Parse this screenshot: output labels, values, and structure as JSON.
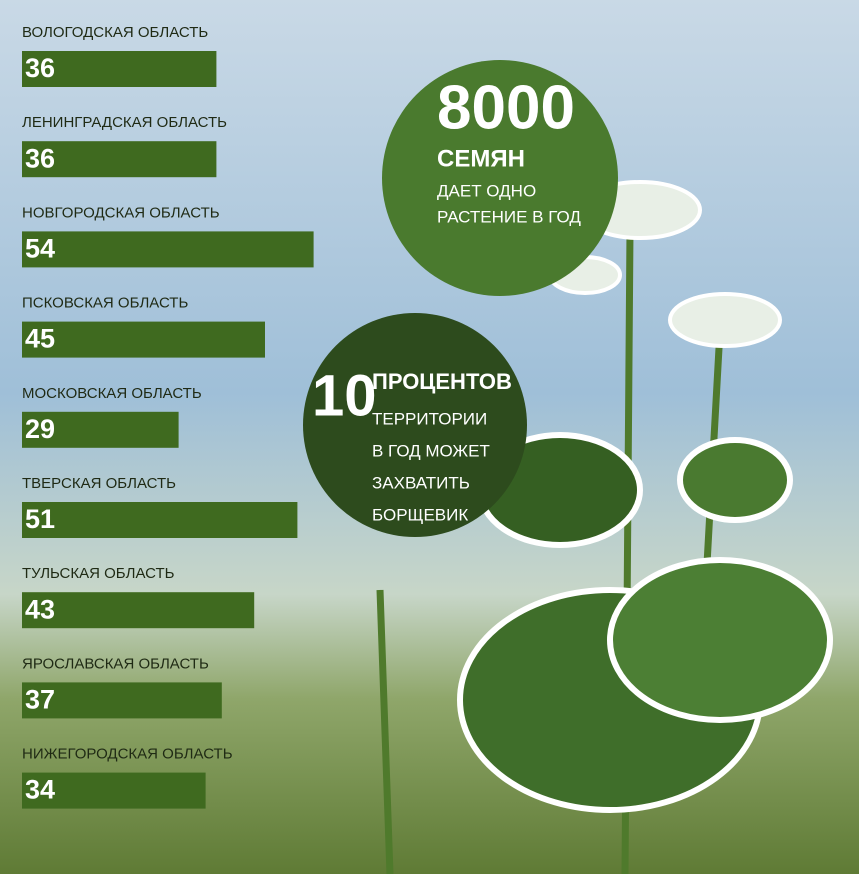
{
  "chart_data": {
    "type": "hbar",
    "categories": [
      "ВОЛОГОДСКАЯ ОБЛАСТЬ",
      "ЛЕНИНГРАДСКАЯ ОБЛАСТЬ",
      "НОВГОРОДСКАЯ ОБЛАСТЬ",
      "ПСКОВСКАЯ ОБЛАСТЬ",
      "МОСКОВСКАЯ ОБЛАСТЬ",
      "ТВЕРСКАЯ ОБЛАСТЬ",
      "ТУЛЬСКАЯ ОБЛАСТЬ",
      "ЯРОСЛАВСКАЯ ОБЛАСТЬ",
      "НИЖЕГОРОДСКАЯ ОБЛАСТЬ"
    ],
    "values": [
      36,
      36,
      54,
      45,
      29,
      51,
      43,
      37,
      34
    ],
    "color": "#3f6a1f",
    "annotations": [
      {
        "lines": [
          "8000",
          "СЕМЯН",
          "ДАЕТ ОДНО",
          "РАСТЕНИЕ В ГОД"
        ],
        "color": "#4a7a2e"
      },
      {
        "lines": [
          "10",
          "ПРОЦЕНТОВ",
          "ТЕРРИТОРИИ",
          "В ГОД МОЖЕТ",
          "ЗАХВАТИТЬ",
          "БОРЩЕВИК"
        ],
        "color": "#2d4b1d"
      }
    ]
  }
}
